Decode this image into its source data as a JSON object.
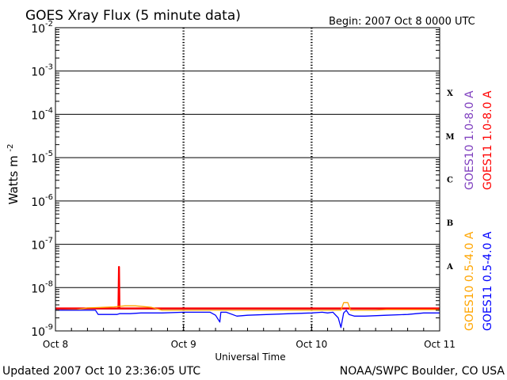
{
  "header": {
    "title": "GOES Xray Flux (5 minute data)",
    "begin": "Begin:  2007 Oct 8 0000 UTC"
  },
  "footer": {
    "updated": "Updated 2007 Oct 10 23:36:05 UTC",
    "source": "NOAA/SWPC Boulder, CO USA"
  },
  "chart_data": {
    "type": "line",
    "title": "GOES Xray Flux (5 minute data)",
    "xlabel": "Universal Time",
    "ylabel": "Watts m",
    "ylabel_exponent": "-2",
    "yscale": "log",
    "ylim": [
      1e-09,
      0.01
    ],
    "xlim": [
      0,
      72
    ],
    "x_units": "hours since 2007 Oct 8 0000 UTC",
    "x_ticks": [
      {
        "x": 0,
        "label": "Oct 8"
      },
      {
        "x": 24,
        "label": "Oct 9"
      },
      {
        "x": 48,
        "label": "Oct 10"
      },
      {
        "x": 72,
        "label": "Oct 11"
      }
    ],
    "y_ticks": [
      {
        "exp": -2,
        "label": "10",
        "sup": "-2"
      },
      {
        "exp": -3,
        "label": "10",
        "sup": "-3"
      },
      {
        "exp": -4,
        "label": "10",
        "sup": "-4"
      },
      {
        "exp": -5,
        "label": "10",
        "sup": "-5"
      },
      {
        "exp": -6,
        "label": "10",
        "sup": "-6"
      },
      {
        "exp": -7,
        "label": "10",
        "sup": "-7"
      },
      {
        "exp": -8,
        "label": "10",
        "sup": "-8"
      },
      {
        "exp": -9,
        "label": "10",
        "sup": "-9"
      }
    ],
    "flare_classes": [
      {
        "label": "X",
        "exp": -3.5
      },
      {
        "label": "M",
        "exp": -4.5
      },
      {
        "label": "C",
        "exp": -5.5
      },
      {
        "label": "B",
        "exp": -6.5
      },
      {
        "label": "A",
        "exp": -7.5
      }
    ],
    "series": [
      {
        "name": "GOES10 1.0-8.0 A",
        "color": "#7f3fbf",
        "points": [
          [
            0,
            3.2e-09
          ],
          [
            72,
            3.2e-09
          ]
        ]
      },
      {
        "name": "GOES11 1.0-8.0 A",
        "color": "#ff0000",
        "points": [
          [
            0,
            3.3e-09
          ],
          [
            11.8,
            3.3e-09
          ],
          [
            11.9,
            3e-08
          ],
          [
            12.0,
            3.3e-09
          ],
          [
            72,
            3.3e-09
          ]
        ]
      },
      {
        "name": "GOES10 0.5-4.0 A",
        "color": "#ffa500",
        "points": [
          [
            0,
            3e-09
          ],
          [
            4,
            3.1e-09
          ],
          [
            6,
            3.4e-09
          ],
          [
            9,
            3.5e-09
          ],
          [
            11,
            3.6e-09
          ],
          [
            13,
            3.8e-09
          ],
          [
            15,
            3.8e-09
          ],
          [
            18,
            3.5e-09
          ],
          [
            20,
            3e-09
          ],
          [
            24,
            3e-09
          ],
          [
            30,
            3e-09
          ],
          [
            36,
            3e-09
          ],
          [
            44,
            3e-09
          ],
          [
            48,
            3e-09
          ],
          [
            52,
            3e-09
          ],
          [
            53.5,
            3e-09
          ],
          [
            54,
            4.5e-09
          ],
          [
            54.8,
            4.5e-09
          ],
          [
            55.3,
            3e-09
          ],
          [
            60,
            3e-09
          ],
          [
            62,
            3.1e-09
          ],
          [
            72,
            3.1e-09
          ]
        ]
      },
      {
        "name": "GOES11 0.5-4.0 A",
        "color": "#0000ff",
        "points": [
          [
            0,
            3e-09
          ],
          [
            7.5,
            3e-09
          ],
          [
            8,
            2.4e-09
          ],
          [
            11.5,
            2.4e-09
          ],
          [
            12,
            2.5e-09
          ],
          [
            14,
            2.5e-09
          ],
          [
            16,
            2.6e-09
          ],
          [
            20,
            2.6e-09
          ],
          [
            24,
            2.7e-09
          ],
          [
            29,
            2.7e-09
          ],
          [
            30,
            2.3e-09
          ],
          [
            30.8,
            1.6e-09
          ],
          [
            31,
            2.7e-09
          ],
          [
            32,
            2.7e-09
          ],
          [
            34,
            2.2e-09
          ],
          [
            36,
            2.3e-09
          ],
          [
            40,
            2.4e-09
          ],
          [
            44,
            2.5e-09
          ],
          [
            48,
            2.6e-09
          ],
          [
            50,
            2.7e-09
          ],
          [
            51,
            2.6e-09
          ],
          [
            52,
            2.7e-09
          ],
          [
            53,
            2e-09
          ],
          [
            53.5,
            1.2e-09
          ],
          [
            54,
            2.6e-09
          ],
          [
            54.5,
            3e-09
          ],
          [
            55,
            2.4e-09
          ],
          [
            56,
            2.2e-09
          ],
          [
            58,
            2.2e-09
          ],
          [
            62,
            2.3e-09
          ],
          [
            66,
            2.4e-09
          ],
          [
            69,
            2.6e-09
          ],
          [
            72,
            2.6e-09
          ]
        ]
      }
    ],
    "legend_right": [
      {
        "text": "GOES10 1.0-8.0 A",
        "color": "#7f3fbf",
        "slot": "upper-left"
      },
      {
        "text": "GOES11 1.0-8.0 A",
        "color": "#ff0000",
        "slot": "upper-right"
      },
      {
        "text": "GOES10 0.5-4.0 A",
        "color": "#ffa500",
        "slot": "lower-left"
      },
      {
        "text": "GOES11 0.5-4.0 A",
        "color": "#0000ff",
        "slot": "lower-right"
      }
    ]
  }
}
